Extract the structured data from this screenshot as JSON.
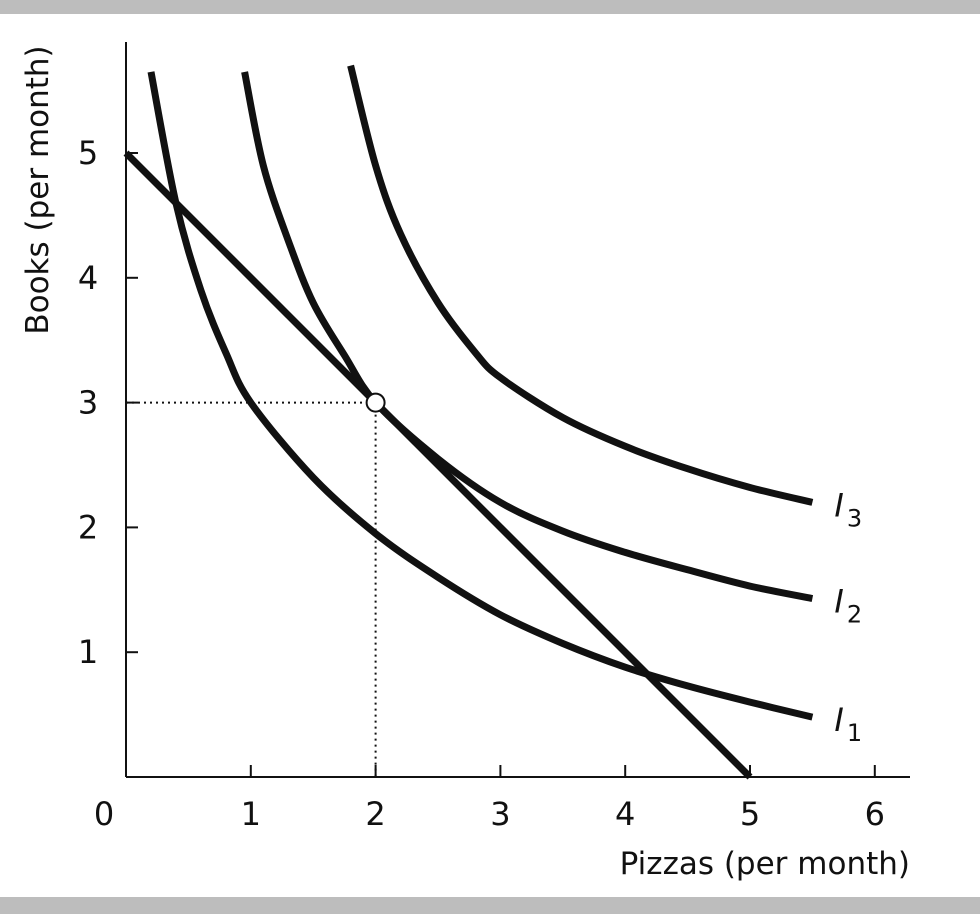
{
  "chart_data": {
    "type": "line",
    "title": "",
    "xlabel": "Pizzas (per month)",
    "ylabel": "Books (per month)",
    "xlim": [
      0,
      6.3
    ],
    "ylim": [
      0,
      5.85
    ],
    "origin_label": "0",
    "x_ticks": [
      1,
      2,
      3,
      4,
      5,
      6
    ],
    "y_ticks": [
      1,
      2,
      3,
      4,
      5
    ],
    "x_tick_labels": [
      "1",
      "2",
      "3",
      "4",
      "5",
      "6"
    ],
    "y_tick_labels": [
      "1",
      "2",
      "3",
      "4",
      "5"
    ],
    "grid": false,
    "legend": "none",
    "budget_line": {
      "x": [
        0,
        5
      ],
      "y": [
        5,
        0
      ]
    },
    "series": [
      {
        "name": "I1",
        "label": "I",
        "subscript": "1",
        "x": [
          0.2,
          0.4,
          0.6,
          0.8,
          1,
          1.5,
          2,
          2.5,
          3,
          3.5,
          4,
          4.5,
          5,
          5.5
        ],
        "y": [
          5.65,
          4.6,
          3.9,
          3.4,
          3.0,
          2.4,
          1.95,
          1.6,
          1.3,
          1.07,
          0.88,
          0.73,
          0.6,
          0.48
        ]
      },
      {
        "name": "I2",
        "label": "I",
        "subscript": "2",
        "x": [
          0.95,
          1.1,
          1.3,
          1.5,
          1.75,
          2,
          2.5,
          3,
          3.5,
          4,
          4.5,
          5,
          5.5
        ],
        "y": [
          5.65,
          4.9,
          4.3,
          3.8,
          3.38,
          3.0,
          2.55,
          2.2,
          1.97,
          1.8,
          1.66,
          1.53,
          1.43
        ]
      },
      {
        "name": "I3",
        "label": "I",
        "subscript": "3",
        "x": [
          1.8,
          2.0,
          2.2,
          2.5,
          2.8,
          3,
          3.5,
          4,
          4.5,
          5,
          5.5
        ],
        "y": [
          5.7,
          4.9,
          4.35,
          3.8,
          3.4,
          3.2,
          2.88,
          2.65,
          2.47,
          2.32,
          2.2
        ]
      }
    ],
    "optimum": {
      "x": 2,
      "y": 3
    },
    "color": "#111111"
  }
}
